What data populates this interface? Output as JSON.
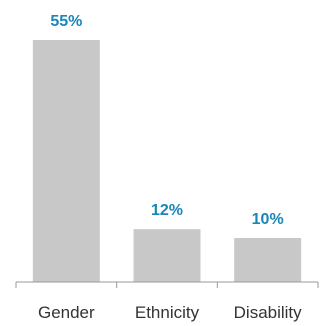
{
  "colors": {
    "bar": "#c8c8c8",
    "value_label": "#1a86b8",
    "axis": "#9a9a9a",
    "category_label": "#333333"
  },
  "chart_data": {
    "type": "bar",
    "categories": [
      "Gender",
      "Ethnicity",
      "Disability"
    ],
    "values": [
      55,
      12,
      10
    ],
    "value_labels": [
      "55%",
      "12%",
      "10%"
    ],
    "ylim": [
      0,
      55
    ],
    "grid": false,
    "title": "",
    "xlabel": "",
    "ylabel": ""
  }
}
